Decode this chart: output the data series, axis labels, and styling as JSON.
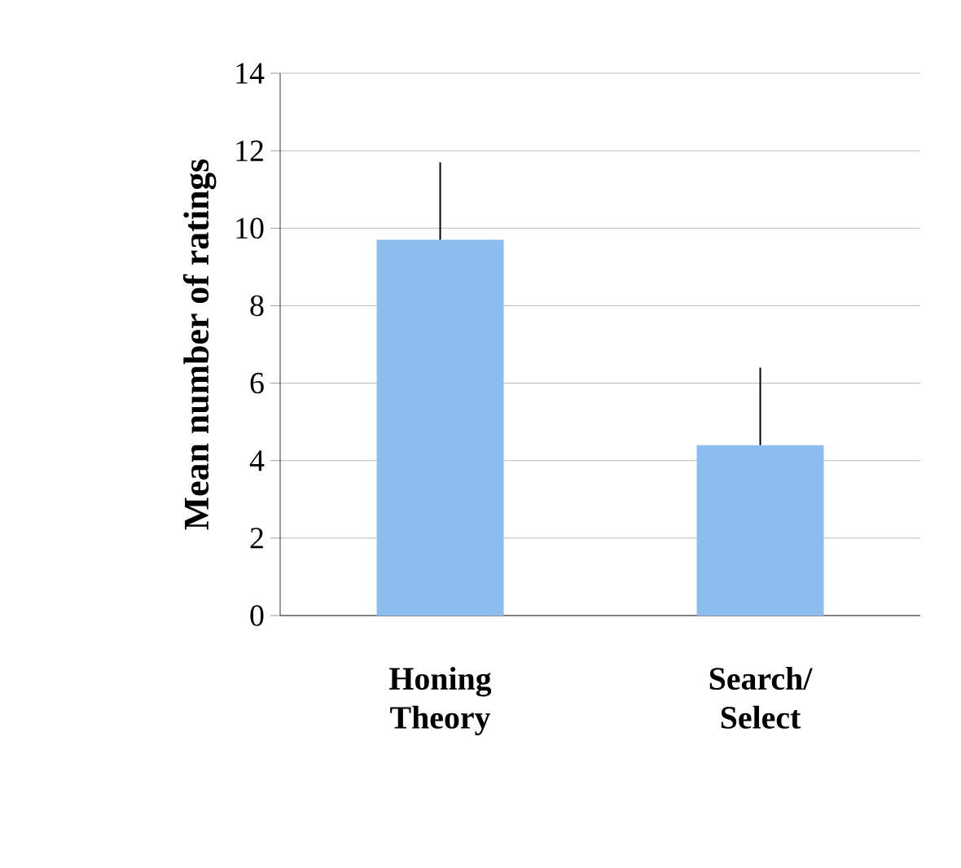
{
  "chart_data": {
    "type": "bar",
    "ylabel": "Mean number of ratings",
    "categories": [
      "Honing Theory",
      "Search/ Select"
    ],
    "values": [
      9.7,
      4.4
    ],
    "errors": [
      2.0,
      2.0
    ],
    "color": "#8dbcf0",
    "ylim": [
      0,
      14
    ],
    "yticks": [
      0,
      2,
      4,
      6,
      8,
      10,
      12,
      14
    ],
    "grid": "y"
  }
}
